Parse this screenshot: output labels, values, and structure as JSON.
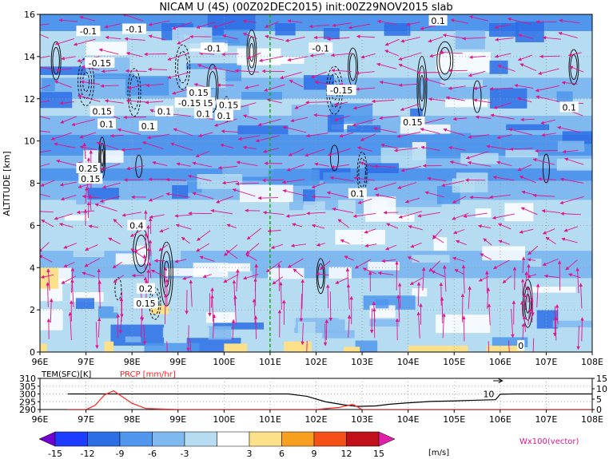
{
  "chart_data": [
    {
      "type": "heatmap",
      "title": "NICAM U (4S) (00Z02DEC2015) init:00Z29NOV2015 slab",
      "xlabel": "",
      "ylabel": "ALTITUDE [km]",
      "xlim": [
        96,
        108
      ],
      "ylim": [
        0,
        16
      ],
      "x_ticks": [
        "96E",
        "97E",
        "98E",
        "99E",
        "100E",
        "101E",
        "102E",
        "103E",
        "104E",
        "105E",
        "106E",
        "107E",
        "108E"
      ],
      "y_ticks": [
        "0",
        "2",
        "4",
        "6",
        "8",
        "10",
        "12",
        "14",
        "16"
      ],
      "grid": true,
      "marker_line_x": 101,
      "contour_labels": [
        {
          "text": "-0.1",
          "x": 97.05,
          "y": 15.2
        },
        {
          "text": "-0.1",
          "x": 98.05,
          "y": 15.3
        },
        {
          "text": "-0.1",
          "x": 99.75,
          "y": 14.4
        },
        {
          "text": "-0.1",
          "x": 102.1,
          "y": 14.4
        },
        {
          "text": "0.1",
          "x": 104.65,
          "y": 15.7
        },
        {
          "text": "-0.15",
          "x": 97.3,
          "y": 13.7
        },
        {
          "text": "-0.15",
          "x": 102.55,
          "y": 12.4
        },
        {
          "text": "0.15",
          "x": 99.55,
          "y": 11.8
        },
        {
          "text": "0.15",
          "x": 99.45,
          "y": 12.3
        },
        {
          "text": "0.15",
          "x": 100.1,
          "y": 11.7
        },
        {
          "text": "-0.15",
          "x": 99.25,
          "y": 11.8
        },
        {
          "text": "0.15",
          "x": 97.35,
          "y": 11.4
        },
        {
          "text": "0.1",
          "x": 97.45,
          "y": 10.8
        },
        {
          "text": "0.1",
          "x": 98.7,
          "y": 11.4
        },
        {
          "text": "0.1",
          "x": 98.35,
          "y": 10.7
        },
        {
          "text": "0.1",
          "x": 99.55,
          "y": 11.3
        },
        {
          "text": "0.1",
          "x": 100.0,
          "y": 11.2
        },
        {
          "text": "0.15",
          "x": 104.1,
          "y": 10.9
        },
        {
          "text": "0.1",
          "x": 107.5,
          "y": 11.6
        },
        {
          "text": "0.25",
          "x": 97.05,
          "y": 8.7
        },
        {
          "text": "0.15",
          "x": 97.1,
          "y": 8.2
        },
        {
          "text": "0.1",
          "x": 102.9,
          "y": 7.5
        },
        {
          "text": "0.4",
          "x": 98.1,
          "y": 6.0
        },
        {
          "text": "0.2",
          "x": 98.3,
          "y": 3.0
        },
        {
          "text": "0.15",
          "x": 98.3,
          "y": 2.3
        },
        {
          "text": "0",
          "x": 106.45,
          "y": 0.3
        }
      ],
      "colorbar": {
        "ticks": [
          "-15",
          "-12",
          "-9",
          "-6",
          "-3",
          "3",
          "6",
          "9",
          "12",
          "15"
        ],
        "unit": "[m/s]",
        "colors": [
          "#7000d0",
          "#1e3cff",
          "#2d6ee6",
          "#4f96ec",
          "#80b8f0",
          "#b6dcf2",
          "#ffffff",
          "#fde08a",
          "#f7a020",
          "#f55018",
          "#c0101a",
          "#e020a8"
        ]
      },
      "vector_label": "Wx100(vector)",
      "colors": {
        "vector": "#e0148c",
        "marker_line": "#22aa22"
      }
    },
    {
      "type": "line",
      "title": "",
      "series": [
        {
          "name": "TEM(SFC)[K]",
          "color": "#000000",
          "x": [
            96.6,
            97,
            98,
            99,
            100,
            100.8,
            101.4,
            101.8,
            102.2,
            102.6,
            102.9,
            103.3,
            103.6,
            104,
            104.5,
            105,
            105.5,
            105.9,
            106.0,
            106.3,
            107,
            108
          ],
          "values": [
            300,
            300,
            300,
            300,
            300,
            300,
            300,
            298.5,
            295,
            293,
            292,
            292.3,
            293.4,
            294.3,
            295.2,
            295.5,
            296,
            296.3,
            299.8,
            300,
            300,
            300
          ]
        },
        {
          "name": "PRCP [mm/hr]",
          "color": "#ff2020",
          "x": [
            96.6,
            97.0,
            97.2,
            97.4,
            97.6,
            97.8,
            98.0,
            98.3,
            99,
            100,
            101,
            102,
            102.5,
            102.8,
            103,
            104,
            105,
            106,
            107,
            108
          ],
          "values": [
            0,
            0,
            2,
            7,
            9,
            6,
            3,
            0.5,
            0,
            0,
            0,
            0,
            1,
            2.5,
            0,
            0,
            0,
            0,
            0,
            0
          ]
        }
      ],
      "left_ticks": [
        "290",
        "295",
        "300",
        "305",
        "310"
      ],
      "right_ticks": [
        "0",
        "5",
        "10",
        "15"
      ],
      "ylim_left": [
        290,
        310
      ],
      "ylim_right": [
        0,
        15
      ],
      "xlim": [
        96,
        108
      ],
      "x_ticks": [
        "96E",
        "97E",
        "98E",
        "99E",
        "100E",
        "101E",
        "102E",
        "103E",
        "104E",
        "105E",
        "106E",
        "107E",
        "108E"
      ],
      "annotations": [
        {
          "text": "10",
          "x": 105.75,
          "y": 300
        }
      ]
    }
  ]
}
